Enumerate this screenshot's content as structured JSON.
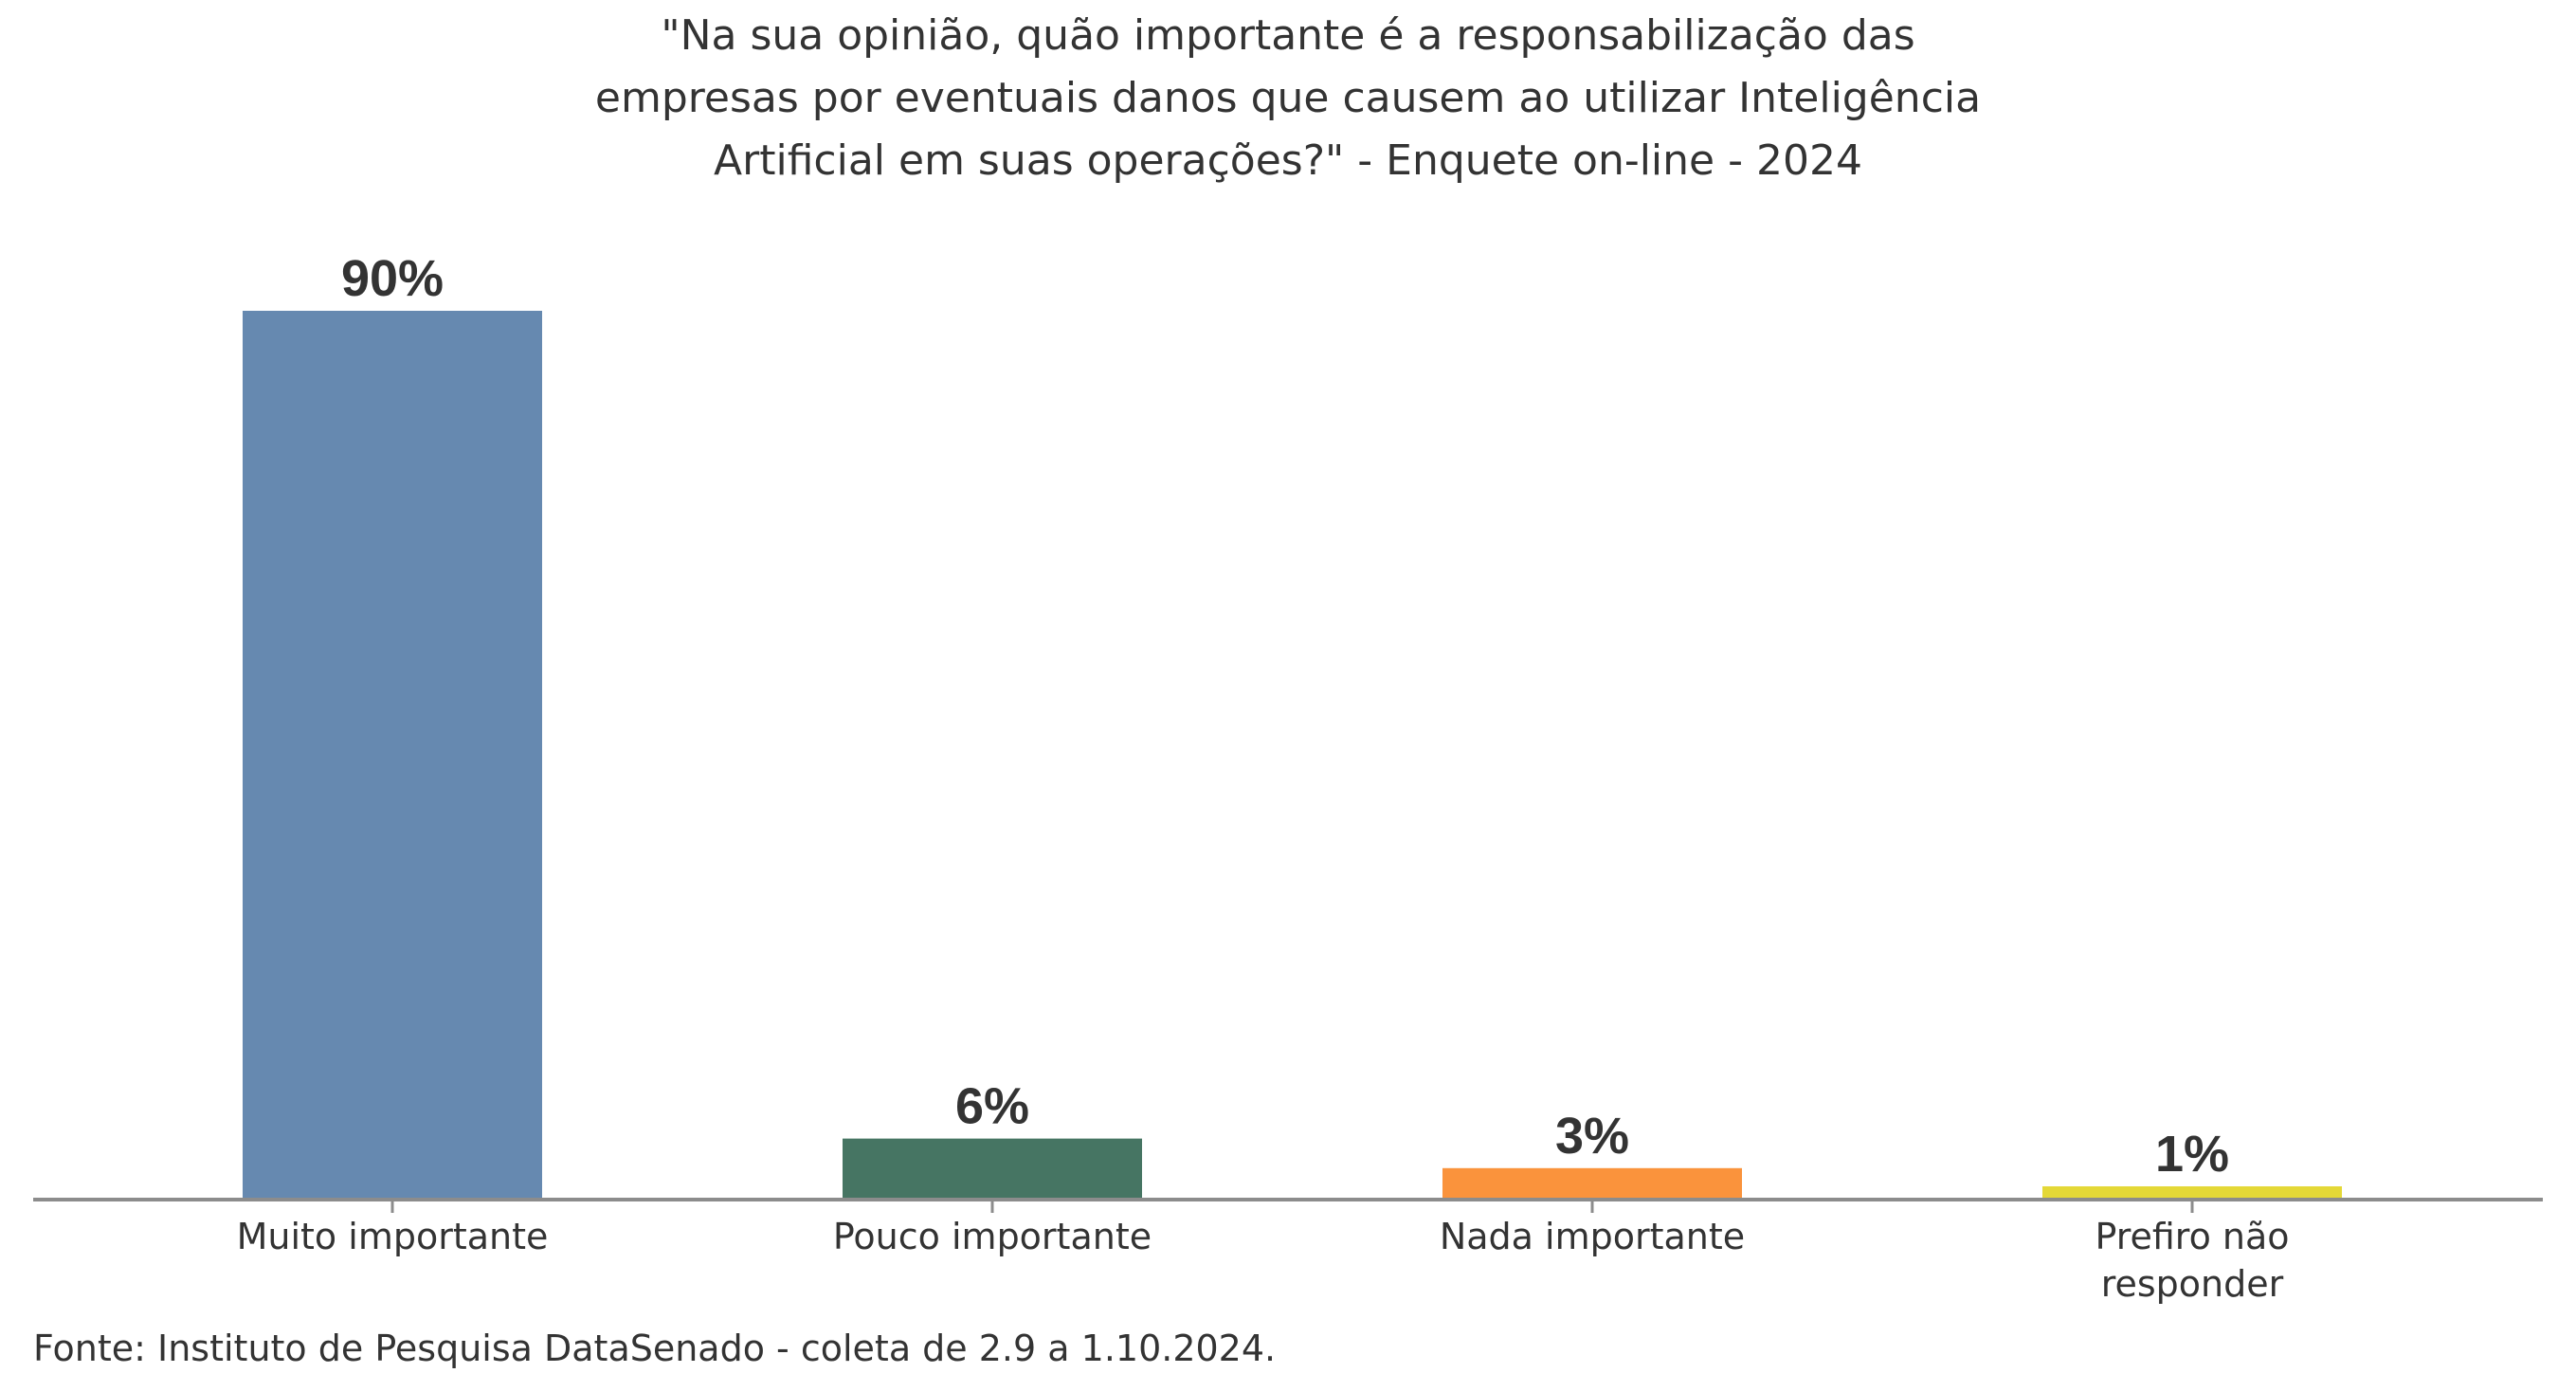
{
  "chart_data": {
    "type": "bar",
    "title": [
      "\"Na sua opinião, quão importante é a responsabilização das",
      "empresas por eventuais danos que causem ao utilizar Inteligência",
      "Artificial em suas operações?\" - Enquete on-line - 2024"
    ],
    "categories": [
      [
        "Muito importante"
      ],
      [
        "Pouco importante"
      ],
      [
        "Nada importante"
      ],
      [
        "Prefiro não",
        "responder"
      ]
    ],
    "values": [
      90,
      6,
      3,
      1
    ],
    "data_labels": [
      "90%",
      "6%",
      "3%",
      "1%"
    ],
    "colors": [
      "#6689b0",
      "#467563",
      "#fa933c",
      "#e4d837"
    ],
    "xlabel": "",
    "ylabel": "",
    "ylim": [
      0,
      90
    ],
    "grid": false,
    "source": "Fonte: Instituto de Pesquisa DataSenado - coleta de 2.9 a 1.10.2024."
  }
}
